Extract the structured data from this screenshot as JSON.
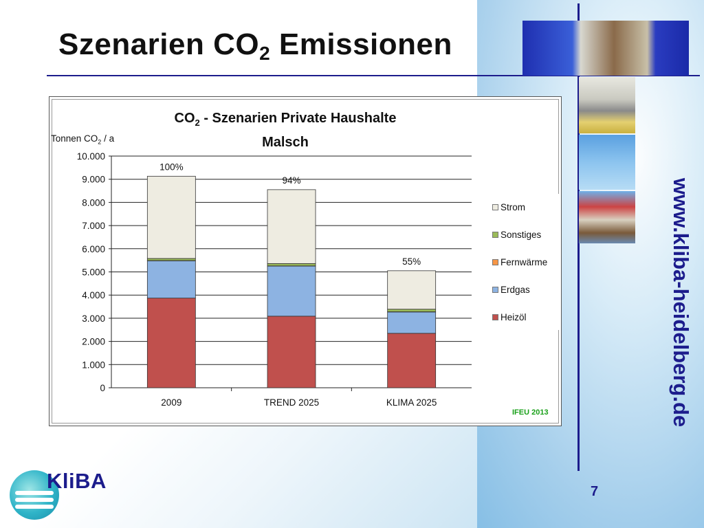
{
  "slide": {
    "title_main": "Szenarien CO",
    "title_sub": "2",
    "title_rest": " Emissionen",
    "side_url": "www.kliba-heidelberg.de",
    "logo_text": "KliBA",
    "page_number": "7"
  },
  "chart_data": {
    "type": "bar",
    "stacked": true,
    "title_line1_a": "CO",
    "title_line1_sub": "2",
    "title_line1_b": " - Szenarien Private Haushalte",
    "title_line2": "Malsch",
    "ylabel_a": "Tonnen CO",
    "ylabel_sub": "2",
    "ylabel_b": " / a",
    "categories": [
      "2009",
      "TREND 2025",
      "KLIMA 2025"
    ],
    "ylim": [
      0,
      10000
    ],
    "yticks": [
      0,
      1000,
      2000,
      3000,
      4000,
      5000,
      6000,
      7000,
      8000,
      9000,
      10000
    ],
    "ytick_labels": [
      "0",
      "1.000",
      "2.000",
      "3.000",
      "4.000",
      "5.000",
      "6.000",
      "7.000",
      "8.000",
      "9.000",
      "10.000"
    ],
    "grid": true,
    "legend_position": "right",
    "series": [
      {
        "name": "Heizöl",
        "color": "#c0504d",
        "values": [
          3870,
          3090,
          2350
        ]
      },
      {
        "name": "Erdgas",
        "color": "#8db3e2",
        "values": [
          1610,
          2160,
          920
        ]
      },
      {
        "name": "Fernwärme",
        "color": "#f79646",
        "values": [
          10,
          10,
          10
        ]
      },
      {
        "name": "Sonstiges",
        "color": "#9bbb59",
        "values": [
          90,
          100,
          110
        ]
      },
      {
        "name": "Strom",
        "color": "#eeece1",
        "values": [
          3550,
          3190,
          1660
        ]
      }
    ],
    "legend_order": [
      "Strom",
      "Sonstiges",
      "Fernwärme",
      "Erdgas",
      "Heizöl"
    ],
    "bar_labels": [
      "100%",
      "94%",
      "55%"
    ],
    "source": "IFEU 2013"
  }
}
